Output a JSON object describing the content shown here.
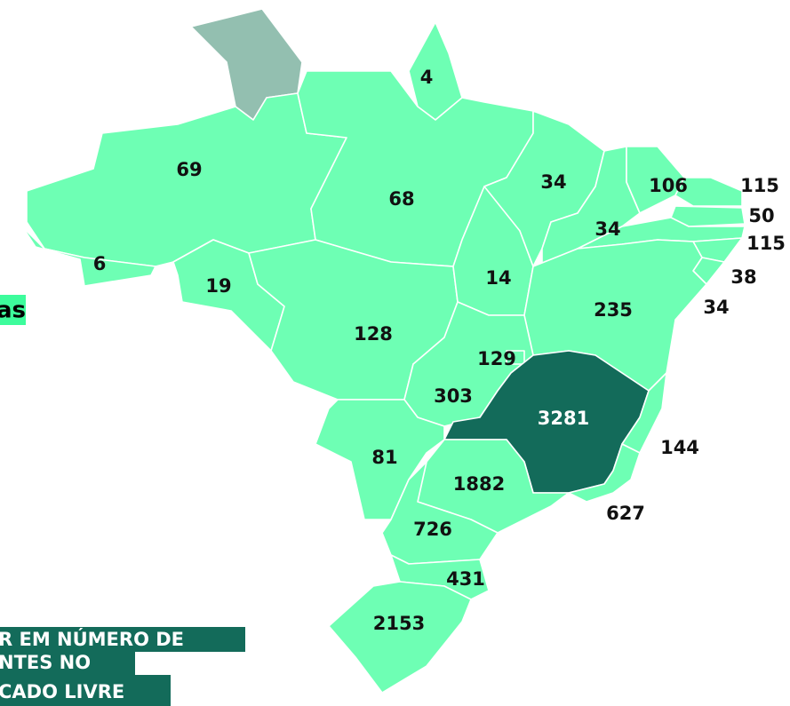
{
  "map": {
    "side_text": "as",
    "caption": [
      "R EM NÚMERO DE",
      "NTES NO",
      "CADO LIVRE"
    ],
    "values": [
      69,
      4,
      6,
      68,
      19,
      128,
      34,
      106,
      115,
      50,
      115,
      38,
      34,
      34,
      14,
      235,
      129,
      303,
      3281,
      144,
      81,
      1882,
      627,
      726,
      431,
      2153
    ]
  }
}
